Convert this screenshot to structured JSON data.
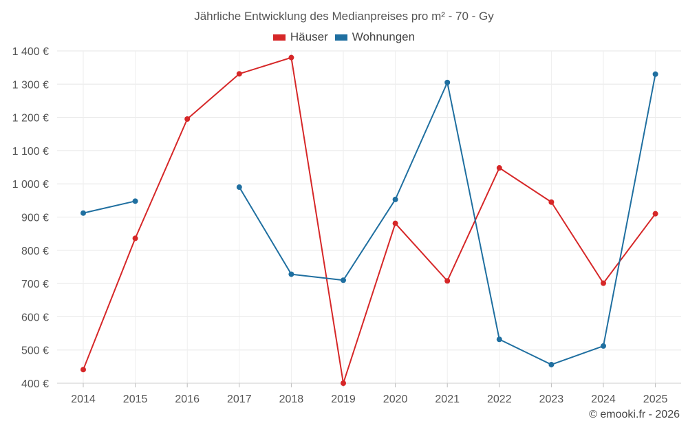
{
  "chart_data": {
    "type": "line",
    "title": "Jährliche Entwicklung des Medianpreises pro m² - 70 - Gy",
    "categories": [
      "2014",
      "2015",
      "2016",
      "2017",
      "2018",
      "2019",
      "2020",
      "2021",
      "2022",
      "2023",
      "2024",
      "2025"
    ],
    "ylim": [
      400,
      1400
    ],
    "yticks": [
      400,
      500,
      600,
      700,
      800,
      900,
      1000,
      1100,
      1200,
      1300,
      1400
    ],
    "ytick_labels": [
      "400 €",
      "500 €",
      "600 €",
      "700 €",
      "800 €",
      "900 €",
      "1 000 €",
      "1 100 €",
      "1 200 €",
      "1 300 €",
      "1 400 €"
    ],
    "grid": true,
    "legend_position": "top-center",
    "series": [
      {
        "name": "Häuser",
        "color": "#d62728",
        "values": [
          441,
          836,
          1195,
          1331,
          1380,
          400,
          881,
          708,
          1048,
          945,
          701,
          910
        ]
      },
      {
        "name": "Wohnungen",
        "color": "#1f6fa0",
        "values": [
          912,
          948,
          null,
          990,
          728,
          710,
          953,
          1305,
          532,
          456,
          512,
          1330
        ]
      }
    ]
  },
  "credit": "© emooki.fr - 2026"
}
